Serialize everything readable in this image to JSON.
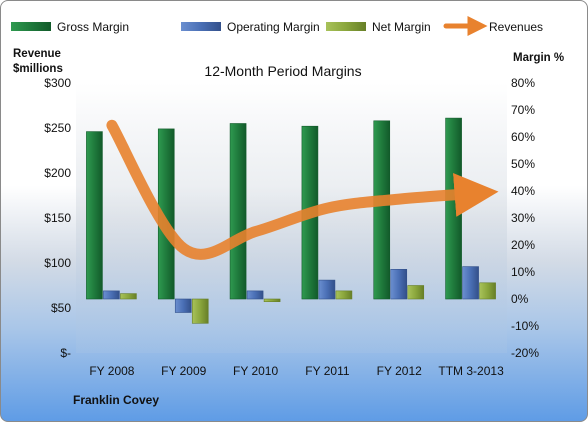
{
  "colors": {
    "gross_margin": "#1f7a3c",
    "operating_margin": "#4a6fb5",
    "net_margin": "#8aa63c",
    "revenues": "#e8822e"
  },
  "chart_data": {
    "type": "bar",
    "title": "12-Month Period Margins",
    "company": "Franklin Covey",
    "left_axis_label": [
      "Revenue",
      "$millions"
    ],
    "right_axis_label": "Margin %",
    "categories": [
      "FY 2008",
      "FY 2009",
      "FY 2010",
      "FY 2011",
      "FY 2012",
      "TTM 3-2013"
    ],
    "left_ticks": [
      "$-",
      "$50",
      "$100",
      "$150",
      "$200",
      "$250",
      "$300"
    ],
    "left_range": [
      0,
      300
    ],
    "right_ticks": [
      "-20%",
      "-10%",
      "0%",
      "10%",
      "20%",
      "30%",
      "40%",
      "50%",
      "60%",
      "70%",
      "80%"
    ],
    "right_range": [
      -20,
      80
    ],
    "legend_position": "top",
    "series": [
      {
        "name": "Gross Margin",
        "kind": "bar",
        "axis": "right",
        "values": [
          62,
          63,
          65,
          64,
          66,
          67
        ]
      },
      {
        "name": "Operating Margin",
        "kind": "bar",
        "axis": "right",
        "values": [
          3,
          -5,
          3,
          7,
          11,
          12
        ]
      },
      {
        "name": "Net Margin",
        "kind": "bar",
        "axis": "right",
        "values": [
          2,
          -9,
          -1,
          3,
          5,
          6
        ]
      },
      {
        "name": "Revenues",
        "kind": "line",
        "axis": "left",
        "values": [
          253,
          116,
          135,
          161,
          171,
          177
        ]
      }
    ]
  }
}
